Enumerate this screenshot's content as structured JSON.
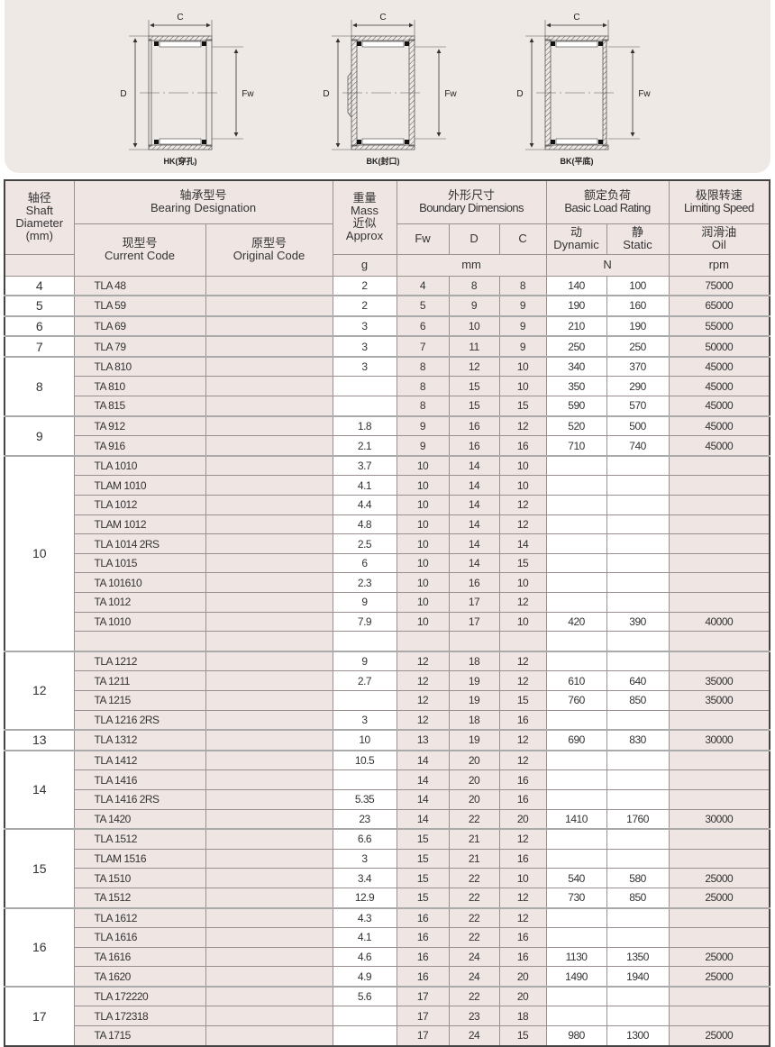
{
  "diagrams": [
    {
      "type": "HK",
      "caption": "HK(穿孔)",
      "labels": {
        "c": "C",
        "d": "D",
        "fw": "Fw"
      }
    },
    {
      "type": "BK-closed",
      "caption": "BK(封口)",
      "labels": {
        "c": "C",
        "d": "D",
        "fw": "Fw"
      }
    },
    {
      "type": "BK-flat",
      "caption": "BK(平底)",
      "labels": {
        "c": "C",
        "d": "D",
        "fw": "Fw"
      }
    }
  ],
  "header": {
    "shaft": {
      "zh": "轴径",
      "en1": "Shaft",
      "en2": "Diameter",
      "unit": "(mm)"
    },
    "designation": {
      "zh": "轴承型号",
      "en": "Bearing Designation"
    },
    "current": {
      "zh": "现型号",
      "en": "Current Code"
    },
    "original": {
      "zh": "原型号",
      "en": "Original Code"
    },
    "mass": {
      "zh1": "重量",
      "en1": "Mass",
      "zh2": "近似",
      "en2": "Approx",
      "unit": "g"
    },
    "boundary": {
      "zh": "外形尺寸",
      "en": "Boundary Dimensions",
      "fw": "Fw",
      "d": "D",
      "c": "C",
      "unit": "mm"
    },
    "load": {
      "zh": "额定负荷",
      "en": "Basic Load Rating",
      "dyn_zh": "动",
      "dyn_en": "Dynamic",
      "stat_zh": "静",
      "stat_en": "Static",
      "unit": "N"
    },
    "speed": {
      "zh": "极限转速",
      "en": "Limiting Speed",
      "oil_zh": "润滑油",
      "oil_en": "Oil",
      "unit": "rpm"
    }
  },
  "groups": [
    {
      "shaft": "4",
      "rows": [
        [
          "TLA 48",
          "",
          "2",
          "4",
          "8",
          "8",
          "140",
          "100",
          "75000"
        ]
      ]
    },
    {
      "shaft": "5",
      "rows": [
        [
          "TLA 59",
          "",
          "2",
          "5",
          "9",
          "9",
          "190",
          "160",
          "65000"
        ]
      ]
    },
    {
      "shaft": "6",
      "rows": [
        [
          "TLA 69",
          "",
          "3",
          "6",
          "10",
          "9",
          "210",
          "190",
          "55000"
        ]
      ]
    },
    {
      "shaft": "7",
      "rows": [
        [
          "TLA 79",
          "",
          "3",
          "7",
          "11",
          "9",
          "250",
          "250",
          "50000"
        ]
      ]
    },
    {
      "shaft": "8",
      "rows": [
        [
          "TLA 810",
          "",
          "3",
          "8",
          "12",
          "10",
          "340",
          "370",
          "45000"
        ],
        [
          "TA 810",
          "",
          "",
          "8",
          "15",
          "10",
          "350",
          "290",
          "45000"
        ],
        [
          "TA 815",
          "",
          "",
          "8",
          "15",
          "15",
          "590",
          "570",
          "45000"
        ]
      ]
    },
    {
      "shaft": "9",
      "rows": [
        [
          "TA 912",
          "",
          "1.8",
          "9",
          "16",
          "12",
          "520",
          "500",
          "45000"
        ],
        [
          "TA 916",
          "",
          "2.1",
          "9",
          "16",
          "16",
          "710",
          "740",
          "45000"
        ]
      ]
    },
    {
      "shaft": "10",
      "rows": [
        [
          "TLA 1010",
          "",
          "3.7",
          "10",
          "14",
          "10",
          "",
          "",
          ""
        ],
        [
          "TLAM 1010",
          "",
          "4.1",
          "10",
          "14",
          "10",
          "",
          "",
          ""
        ],
        [
          "TLA 1012",
          "",
          "4.4",
          "10",
          "14",
          "12",
          "",
          "",
          ""
        ],
        [
          "TLAM 1012",
          "",
          "4.8",
          "10",
          "14",
          "12",
          "",
          "",
          ""
        ],
        [
          "TLA 1014 2RS",
          "",
          "2.5",
          "10",
          "14",
          "14",
          "",
          "",
          ""
        ],
        [
          "TLA 1015",
          "",
          "6",
          "10",
          "14",
          "15",
          "",
          "",
          ""
        ],
        [
          "TA 101610",
          "",
          "2.3",
          "10",
          "16",
          "10",
          "",
          "",
          ""
        ],
        [
          "TA 1012",
          "",
          "9",
          "10",
          "17",
          "12",
          "",
          "",
          ""
        ],
        [
          "TA 1010",
          "",
          "7.9",
          "10",
          "17",
          "10",
          "420",
          "390",
          "40000"
        ],
        [
          "",
          "",
          "",
          "",
          "",
          "",
          "",
          "",
          ""
        ]
      ]
    },
    {
      "shaft": "12",
      "rows": [
        [
          "TLA 1212",
          "",
          "9",
          "12",
          "18",
          "12",
          "",
          "",
          ""
        ],
        [
          "TA 1211",
          "",
          "2.7",
          "12",
          "19",
          "12",
          "610",
          "640",
          "35000"
        ],
        [
          "TA 1215",
          "",
          "",
          "12",
          "19",
          "15",
          "760",
          "850",
          "35000"
        ],
        [
          "TLA 1216 2RS",
          "",
          "3",
          "12",
          "18",
          "16",
          "",
          "",
          ""
        ]
      ]
    },
    {
      "shaft": "13",
      "rows": [
        [
          "TLA 1312",
          "",
          "10",
          "13",
          "19",
          "12",
          "690",
          "830",
          "30000"
        ]
      ]
    },
    {
      "shaft": "14",
      "rows": [
        [
          "TLA 1412",
          "",
          "10.5",
          "14",
          "20",
          "12",
          "",
          "",
          ""
        ],
        [
          "TLA 1416",
          "",
          "",
          "14",
          "20",
          "16",
          "",
          "",
          ""
        ],
        [
          "TLA 1416 2RS",
          "",
          "5.35",
          "14",
          "20",
          "16",
          "",
          "",
          ""
        ],
        [
          "TA 1420",
          "",
          "23",
          "14",
          "22",
          "20",
          "1410",
          "1760",
          "30000"
        ]
      ]
    },
    {
      "shaft": "15",
      "rows": [
        [
          "TLA 1512",
          "",
          "6.6",
          "15",
          "21",
          "12",
          "",
          "",
          ""
        ],
        [
          "TLAM 1516",
          "",
          "3",
          "15",
          "21",
          "16",
          "",
          "",
          ""
        ],
        [
          "TA 1510",
          "",
          "3.4",
          "15",
          "22",
          "10",
          "540",
          "580",
          "25000"
        ],
        [
          "TA 1512",
          "",
          "12.9",
          "15",
          "22",
          "12",
          "730",
          "850",
          "25000"
        ]
      ]
    },
    {
      "shaft": "16",
      "rows": [
        [
          "TLA 1612",
          "",
          "4.3",
          "16",
          "22",
          "12",
          "",
          "",
          ""
        ],
        [
          "TLA 1616",
          "",
          "4.1",
          "16",
          "22",
          "16",
          "",
          "",
          ""
        ],
        [
          "TA 1616",
          "",
          "4.6",
          "16",
          "24",
          "16",
          "1130",
          "1350",
          "25000"
        ],
        [
          "TA 1620",
          "",
          "4.9",
          "16",
          "24",
          "20",
          "1490",
          "1940",
          "25000"
        ]
      ]
    },
    {
      "shaft": "17",
      "rows": [
        [
          "TLA 172220",
          "",
          "5.6",
          "17",
          "22",
          "20",
          "",
          "",
          ""
        ],
        [
          "TLA 172318",
          "",
          "",
          "17",
          "23",
          "18",
          "",
          "",
          ""
        ],
        [
          "TA 1715",
          "",
          "",
          "17",
          "24",
          "15",
          "980",
          "1300",
          "25000"
        ]
      ]
    }
  ]
}
